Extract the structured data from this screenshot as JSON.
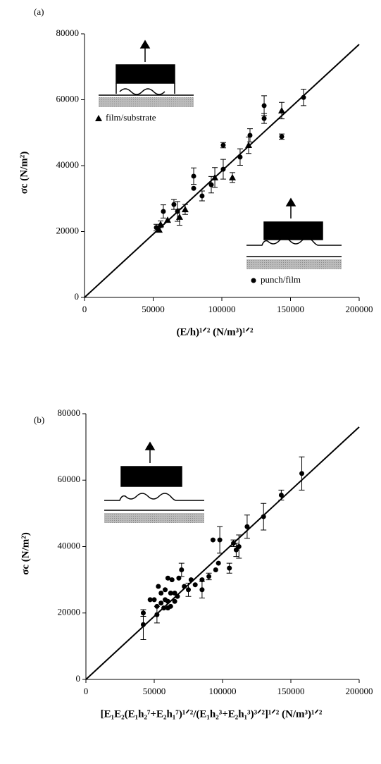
{
  "chart_data": [
    {
      "type": "scatter",
      "title": "(a)",
      "xlabel": "(E/h)¹ᐟ² (N/m³)¹ᐟ²",
      "ylabel": "σc (N/m²)",
      "xlim": [
        0,
        200000
      ],
      "ylim": [
        0,
        80000
      ],
      "xticks": [
        0,
        50000,
        100000,
        150000,
        200000
      ],
      "yticks": [
        0,
        20000,
        40000,
        60000,
        80000
      ],
      "fit": {
        "x": [
          0,
          200000
        ],
        "y": [
          0,
          76800
        ]
      },
      "series": [
        {
          "name": "film/substrate",
          "marker": "triangle",
          "color": "#000000",
          "x": [
            54400,
            55400,
            60500,
            69200,
            73300,
            94900,
            107700,
            119500,
            143600
          ],
          "values": [
            20500,
            22200,
            23500,
            24400,
            26700,
            36400,
            36400,
            46200,
            56700
          ],
          "errors": [
            null,
            1000,
            null,
            2500,
            1500,
            3000,
            1500,
            2500,
            2500
          ]
        },
        {
          "name": "punch/film",
          "marker": "circle",
          "color": "#000000",
          "x": [
            52300,
            57400,
            65100,
            67700,
            79500,
            79500,
            85600,
            92300,
            101000,
            101000,
            113300,
            120500,
            130800,
            130800,
            143600,
            159500
          ],
          "values": [
            21200,
            26100,
            28200,
            26100,
            36800,
            33100,
            30800,
            34200,
            38900,
            46200,
            42600,
            49200,
            58200,
            54300,
            48800,
            60700
          ],
          "errors": [
            1000,
            2000,
            1500,
            3000,
            2500,
            null,
            1500,
            2500,
            3000,
            800,
            2500,
            2000,
            3000,
            1500,
            800,
            2500
          ]
        }
      ]
    },
    {
      "type": "scatter",
      "title": "(b)",
      "xlabel": "[E₁E₂(E₁h₂⁷+E₂h₁⁷)¹ᐟ²/(E₁h₂³+E₂h₁³)³ᐟ²]¹ᐟ² (N/m³)¹ᐟ²",
      "ylabel": "σc (N/m²)",
      "xlim": [
        0,
        200000
      ],
      "ylim": [
        0,
        80000
      ],
      "xticks": [
        0,
        50000,
        100000,
        150000,
        200000
      ],
      "yticks": [
        0,
        20000,
        40000,
        60000,
        80000
      ],
      "fit": {
        "x": [
          0,
          200000
        ],
        "y": [
          0,
          76000
        ]
      },
      "series": [
        {
          "name": null,
          "marker": "circle",
          "color": "#000000",
          "x": [
            42000,
            42000,
            47000,
            50000,
            52000,
            52000,
            53000,
            55000,
            55000,
            57000,
            58000,
            58000,
            60000,
            60000,
            60000,
            62000,
            62000,
            63000,
            65000,
            65000,
            67000,
            68000,
            70000,
            72000,
            75000,
            77000,
            80000,
            85000,
            85000,
            90000,
            93000,
            95000,
            97000,
            98000,
            105000,
            108000,
            110000,
            112000,
            118000,
            130000,
            143000,
            158000
          ],
          "values": [
            16500,
            20000,
            24000,
            24000,
            19500,
            22000,
            28000,
            23000,
            26000,
            21500,
            24000,
            27000,
            21500,
            23500,
            30500,
            22000,
            26000,
            30000,
            23500,
            26000,
            25000,
            30500,
            33000,
            28000,
            27000,
            30000,
            28500,
            27000,
            30000,
            31000,
            42000,
            33000,
            35000,
            42000,
            33500,
            41000,
            39000,
            40000,
            46000,
            49000,
            55500,
            62000
          ],
          "errors": [
            4500,
            1000,
            null,
            null,
            2500,
            null,
            null,
            null,
            null,
            null,
            null,
            null,
            null,
            null,
            null,
            null,
            null,
            null,
            null,
            null,
            null,
            null,
            2000,
            null,
            2000,
            null,
            null,
            2500,
            null,
            1000,
            null,
            null,
            null,
            4000,
            1500,
            1000,
            2000,
            3500,
            3500,
            4000,
            1500,
            5000
          ]
        }
      ]
    }
  ]
}
